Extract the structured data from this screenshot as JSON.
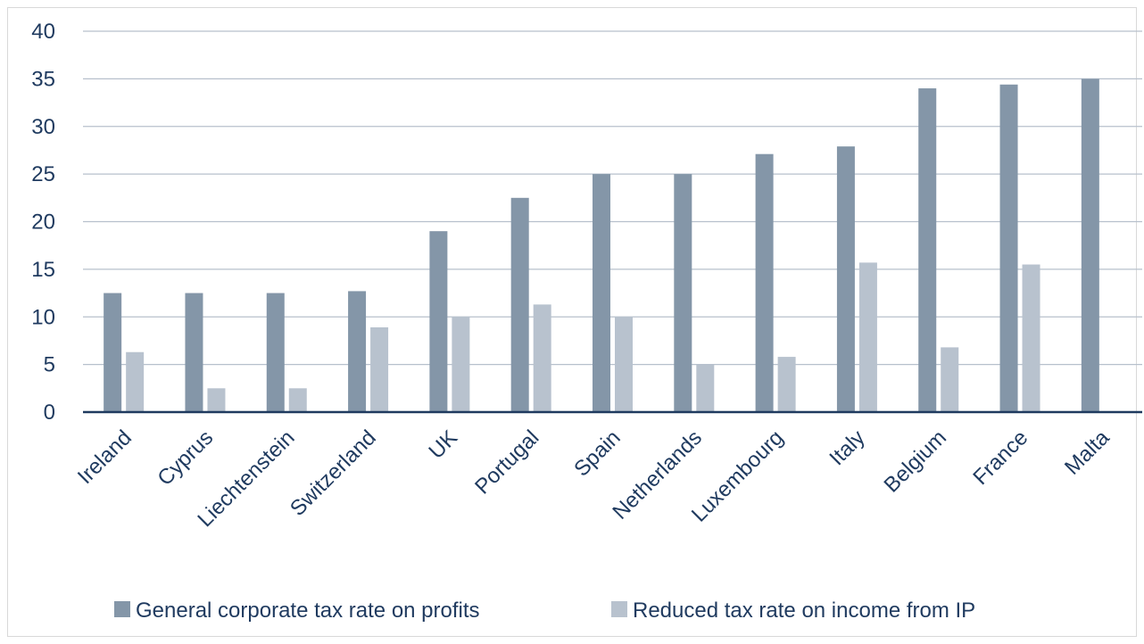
{
  "chart_data": {
    "type": "bar",
    "categories": [
      "Ireland",
      "Cyprus",
      "Liechtenstein",
      "Switzerland",
      "UK",
      "Portugal",
      "Spain",
      "Netherlands",
      "Luxembourg",
      "Italy",
      "Belgium",
      "France",
      "Malta"
    ],
    "series": [
      {
        "name": "General corporate tax rate on profits",
        "color": "#8496a8",
        "values": [
          12.5,
          12.5,
          12.5,
          12.7,
          19,
          22.5,
          25,
          25,
          27.1,
          27.9,
          34,
          34.4,
          35
        ]
      },
      {
        "name": "Reduced tax rate on income from IP",
        "color": "#b8c2ce",
        "values": [
          6.3,
          2.5,
          2.5,
          8.9,
          10,
          11.3,
          10,
          5,
          5.8,
          15.7,
          6.8,
          15.5,
          null
        ]
      }
    ],
    "ylim": [
      0,
      40
    ],
    "yticks": [
      0,
      5,
      10,
      15,
      20,
      25,
      30,
      35,
      40
    ],
    "grid": true,
    "legend_position": "bottom",
    "title": "",
    "xlabel": "",
    "ylabel": ""
  }
}
